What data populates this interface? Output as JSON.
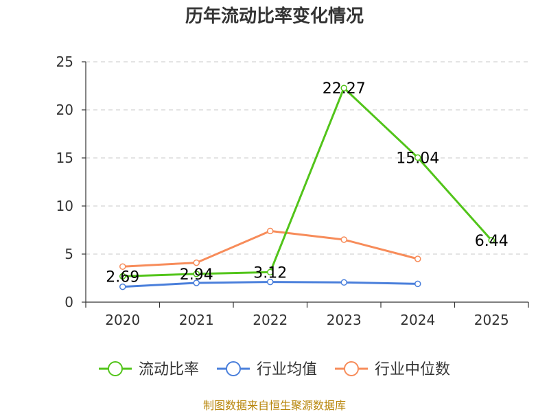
{
  "chart_data": {
    "type": "line",
    "title": "历年流动比率变化情况",
    "categories": [
      "2020",
      "2021",
      "2022",
      "2023",
      "2024",
      "2025"
    ],
    "ylim": [
      0,
      25
    ],
    "yticks": [
      0,
      5,
      10,
      15,
      20,
      25
    ],
    "grid": true,
    "legend_position": "bottom",
    "series": [
      {
        "name": "流动比率",
        "color": "#52c41a",
        "values": [
          2.69,
          2.94,
          3.12,
          22.27,
          15.04,
          6.44
        ],
        "labels": [
          "2.69",
          "2.94",
          "3.12",
          "22.27",
          "15.04",
          "6.44"
        ]
      },
      {
        "name": "行业均值",
        "color": "#4a7fdb",
        "values": [
          1.6,
          2.0,
          2.1,
          2.05,
          1.9,
          null
        ]
      },
      {
        "name": "行业中位数",
        "color": "#f78c5a",
        "values": [
          3.7,
          4.1,
          7.4,
          6.5,
          4.5,
          null
        ]
      }
    ]
  },
  "source": "制图数据来自恒生聚源数据库"
}
